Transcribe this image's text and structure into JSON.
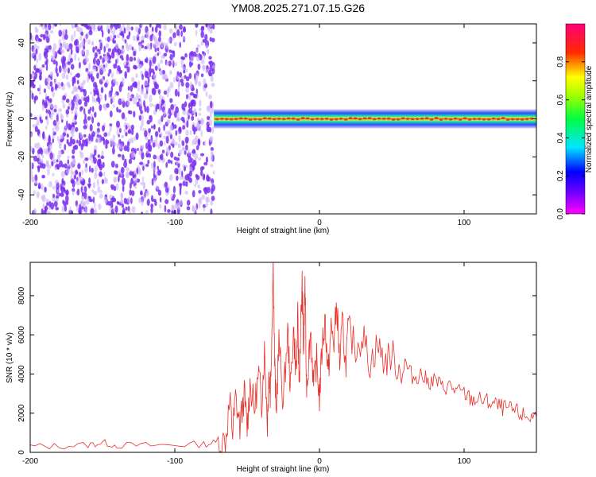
{
  "page": {
    "title": "YM08.2025.271.07.15.G26"
  },
  "colors": {
    "noise_dots": "#7a2ff0",
    "noise_dots_light": "#cbb3f6",
    "snr_line": "#e8302a",
    "axis": "#000000"
  },
  "colorbar": {
    "label": "Normalized spectral amplitude",
    "ticks": [
      0.0,
      0.2,
      0.4,
      0.6,
      0.8
    ],
    "tick_labels": [
      "0.0",
      "0.2",
      "0.4",
      "0.6",
      "0.8"
    ],
    "range": [
      0,
      1
    ],
    "colormap": "rainbow (magenta-blue-cyan-green-yellow-red-pink)"
  },
  "chart_data": [
    {
      "type": "heatmap",
      "title": "YM08.2025.271.07.15.G26",
      "xlabel": "Height of straight line (km)",
      "ylabel": "Frequency (Hz)",
      "xlim": [
        -200,
        150
      ],
      "ylim": [
        -50,
        50
      ],
      "xticks": [
        -200,
        -100,
        0,
        100
      ],
      "xtick_labels": [
        "-200",
        "-100",
        "0",
        "100"
      ],
      "yticks": [
        -40,
        -20,
        0,
        20,
        40
      ],
      "ytick_labels": [
        "-40",
        "-20",
        "0",
        "20",
        "40"
      ],
      "noise_region_x": [
        -200,
        -73
      ],
      "signal_start_x": -73,
      "signal_center_frequency": 0,
      "signal_band_halfwidth": 2,
      "signal_color_value": 1.0,
      "grid": false
    },
    {
      "type": "line",
      "xlabel": "Height of straight line (km)",
      "ylabel": "SNR (10 * v/v)",
      "xlim": [
        -200,
        150
      ],
      "ylim": [
        0,
        9700
      ],
      "xticks": [
        -200,
        -100,
        0,
        100
      ],
      "xtick_labels": [
        "-200",
        "-100",
        "0",
        "100"
      ],
      "yticks": [
        0,
        2000,
        4000,
        6000,
        8000
      ],
      "ytick_labels": [
        "0",
        "2000",
        "4000",
        "6000",
        "8000"
      ],
      "grid": false,
      "series": [
        {
          "x": [
            -200,
            -180,
            -160,
            -150,
            -140,
            -120,
            -100,
            -80,
            -70,
            -65,
            -62,
            -60,
            -58,
            -55,
            -52,
            -50,
            -48,
            -45,
            -42,
            -40,
            -38,
            -36,
            -35,
            -34,
            -33,
            -32,
            -31,
            -30,
            -28,
            -25,
            -22,
            -20,
            -18,
            -16,
            -15,
            -14,
            -13,
            -12,
            -11,
            -10,
            -9,
            -8,
            -6,
            -4,
            -2,
            0,
            2,
            4,
            6,
            8,
            10,
            12,
            14,
            16,
            18,
            20,
            25,
            30,
            35,
            40,
            45,
            50,
            55,
            60,
            65,
            70,
            75,
            80,
            85,
            90,
            95,
            100,
            105,
            110,
            115,
            120,
            125,
            130,
            135,
            140,
            145,
            150
          ],
          "y": [
            300,
            320,
            380,
            500,
            360,
            350,
            380,
            420,
            500,
            600,
            2600,
            1000,
            2800,
            1300,
            3000,
            1200,
            3500,
            2200,
            4000,
            2500,
            5200,
            1500,
            4200,
            3000,
            5800,
            9700,
            4700,
            2000,
            5600,
            2500,
            6200,
            3200,
            6300,
            4000,
            6800,
            3500,
            6300,
            8500,
            5100,
            8800,
            3500,
            4200,
            6300,
            3300,
            4700,
            2800,
            5500,
            6800,
            3800,
            6300,
            5600,
            7600,
            4500,
            6700,
            4400,
            6300,
            5300,
            6000,
            4500,
            5500,
            4600,
            5000,
            4200,
            4400,
            3800,
            4000,
            3600,
            3700,
            3300,
            3400,
            3100,
            3000,
            2700,
            2700,
            2600,
            2500,
            2300,
            2200,
            2100,
            1900,
            1800,
            1800
          ]
        }
      ]
    }
  ]
}
